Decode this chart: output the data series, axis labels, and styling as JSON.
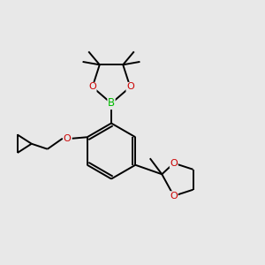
{
  "bg_color": "#e8e8e8",
  "bond_color": "#000000",
  "bond_width": 1.4,
  "O_color": "#cc0000",
  "B_color": "#00bb00",
  "text_fontsize": 8.0,
  "figsize": [
    3.0,
    3.0
  ],
  "dpi": 100,
  "xlim": [
    0.0,
    1.0
  ],
  "ylim": [
    0.0,
    1.0
  ]
}
